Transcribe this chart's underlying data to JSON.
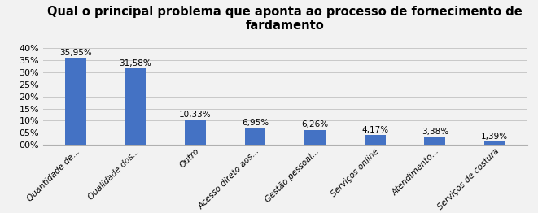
{
  "title": "Qual o principal problema que aponta ao processo de fornecimento de\nfardamento",
  "categories": [
    "Quantidade de...",
    "Qualidade dos...",
    "Outro",
    "Acesso direto aos...",
    "Gestão pessoal...",
    "Serviços online",
    "Atendimento...",
    "Serviços de costura"
  ],
  "values": [
    35.95,
    31.58,
    10.33,
    6.95,
    6.26,
    4.17,
    3.38,
    1.39
  ],
  "labels": [
    "35,95%",
    "31,58%",
    "10,33%",
    "6,95%",
    "6,26%",
    "4,17%",
    "3,38%",
    "1,39%"
  ],
  "bar_color": "#4472C4",
  "yticks": [
    0,
    5,
    10,
    15,
    20,
    25,
    30,
    35,
    40
  ],
  "ytick_labels": [
    "00%",
    "05%",
    "10%",
    "15%",
    "20%",
    "25%",
    "30%",
    "35%",
    "40%"
  ],
  "ylim": [
    0,
    44
  ],
  "fig_background": "#f2f2f2",
  "plot_background": "#f2f2f2",
  "title_fontsize": 10.5,
  "label_fontsize": 7.5,
  "tick_fontsize": 8,
  "bar_width": 0.35,
  "grid_color": "#c8c8c8",
  "spine_color": "#b0b0b0"
}
